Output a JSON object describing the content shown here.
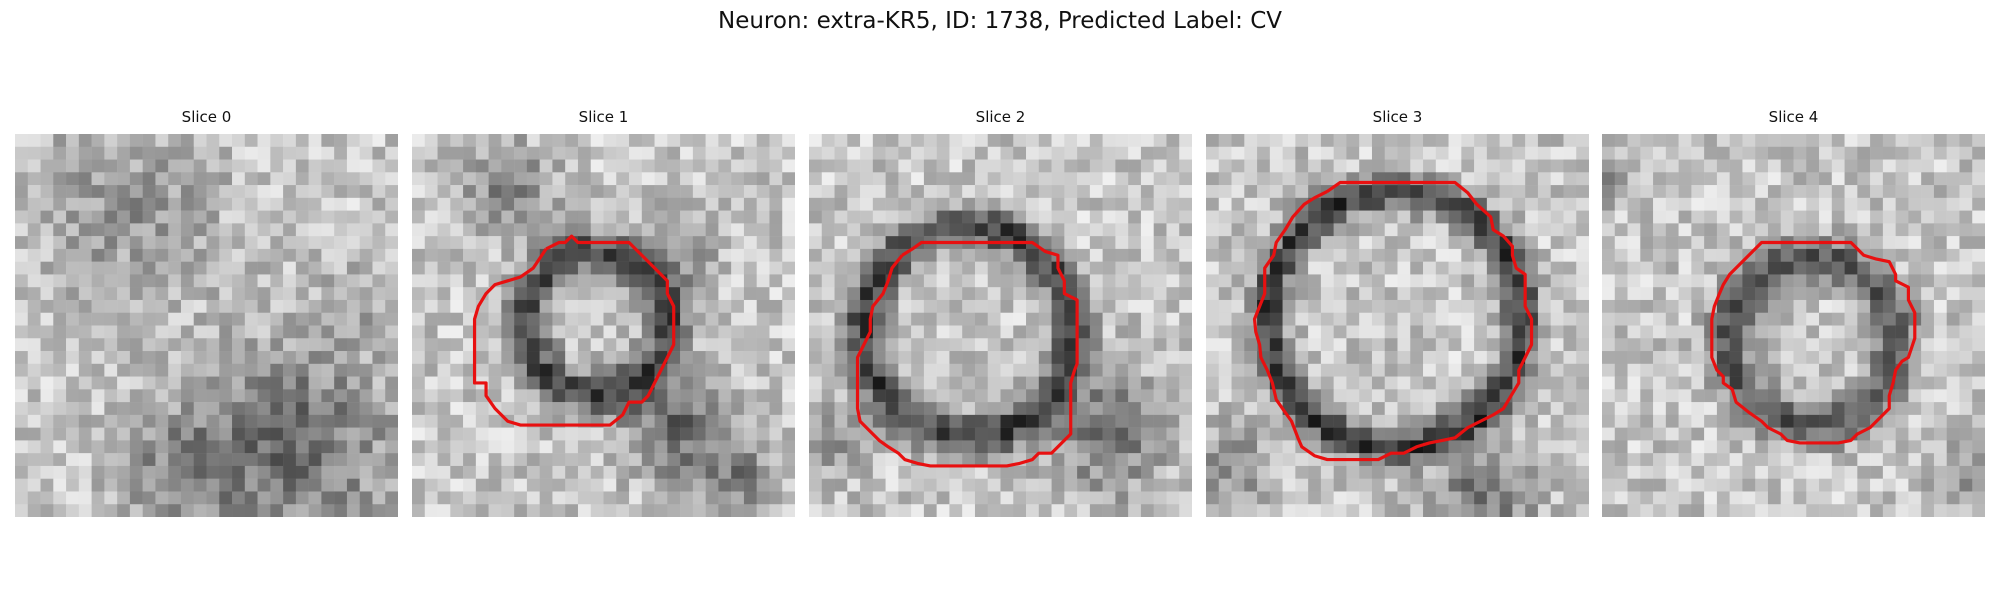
{
  "figure": {
    "title": "Neuron: extra-KR5, ID: 1738, Predicted Label: CV"
  },
  "colors": {
    "contour": "#e81010",
    "background": "#ffffff"
  },
  "slices": [
    {
      "label": "Slice 0",
      "has_contour": false,
      "pattern": "blob"
    },
    {
      "label": "Slice 1",
      "has_contour": true,
      "pattern": "ring-small"
    },
    {
      "label": "Slice 2",
      "has_contour": true,
      "pattern": "ring-mid"
    },
    {
      "label": "Slice 3",
      "has_contour": true,
      "pattern": "ring-large"
    },
    {
      "label": "Slice 4",
      "has_contour": true,
      "pattern": "ring-small-right"
    }
  ]
}
